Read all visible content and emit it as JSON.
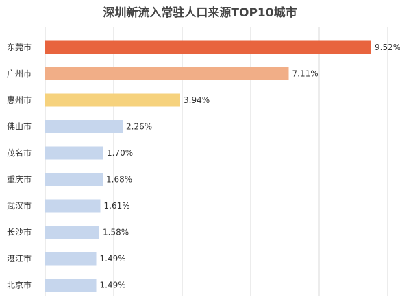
{
  "chart_data": {
    "type": "bar",
    "orientation": "horizontal",
    "title": "深圳新流入常驻人口来源TOP10城市",
    "categories": [
      "东莞市",
      "广州市",
      "惠州市",
      "佛山市",
      "茂名市",
      "重庆市",
      "武汉市",
      "长沙市",
      "湛江市",
      "北京市"
    ],
    "values": [
      9.52,
      7.11,
      3.94,
      2.26,
      1.7,
      1.68,
      1.61,
      1.58,
      1.49,
      1.49
    ],
    "value_labels": [
      "9.52%",
      "7.11%",
      "3.94%",
      "2.26%",
      "1.70%",
      "1.68%",
      "1.61%",
      "1.58%",
      "1.49%",
      "1.49%"
    ],
    "bar_colors": [
      "#e8643e",
      "#f1ae87",
      "#f6d27d",
      "#c6d6ed",
      "#c6d6ed",
      "#c6d6ed",
      "#c6d6ed",
      "#c6d6ed",
      "#c6d6ed",
      "#c6d6ed"
    ],
    "xlim": [
      0,
      10
    ],
    "grid": true,
    "legend": "none"
  }
}
